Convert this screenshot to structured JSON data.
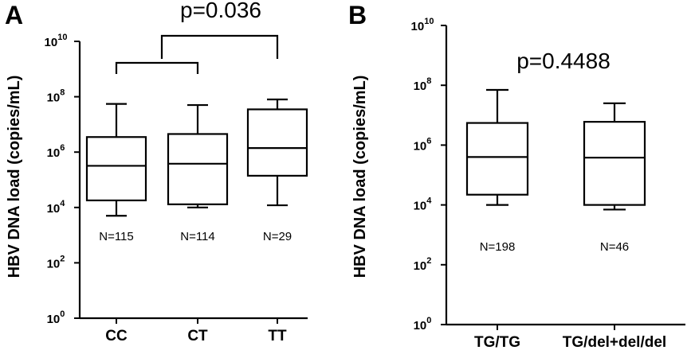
{
  "chart_data": [
    {
      "type": "box",
      "panel_label": "A",
      "ylabel": "HBV DNA load (copies/mL)",
      "y_scale": "log10",
      "ylim": [
        1,
        10000000000
      ],
      "y_ticks": [
        {
          "base": "10",
          "exp": "0"
        },
        {
          "base": "10",
          "exp": "2"
        },
        {
          "base": "10",
          "exp": "4"
        },
        {
          "base": "10",
          "exp": "6"
        },
        {
          "base": "10",
          "exp": "8"
        },
        {
          "base": "10",
          "exp": "10"
        }
      ],
      "categories": [
        "CC",
        "CT",
        "TT"
      ],
      "n_labels": [
        "N=115",
        "N=114",
        "N=29"
      ],
      "boxes": [
        {
          "min": 5000,
          "q1": 18000,
          "median": 320000,
          "q3": 3500000,
          "max": 55000000
        },
        {
          "min": 10000,
          "q1": 13000,
          "median": 380000,
          "q3": 4500000,
          "max": 50000000
        },
        {
          "min": 12000,
          "q1": 140000,
          "median": 1400000,
          "q3": 35000000,
          "max": 80000000
        }
      ],
      "annotation": {
        "text": "p=0.036",
        "brackets": [
          [
            "CC",
            "CT"
          ],
          [
            "CC+CT",
            "TT"
          ]
        ]
      }
    },
    {
      "type": "box",
      "panel_label": "B",
      "ylabel": "HBV DNA load (copies/mL)",
      "y_scale": "log10",
      "ylim": [
        1,
        10000000000
      ],
      "y_ticks": [
        {
          "base": "10",
          "exp": "0"
        },
        {
          "base": "10",
          "exp": "2"
        },
        {
          "base": "10",
          "exp": "4"
        },
        {
          "base": "10",
          "exp": "6"
        },
        {
          "base": "10",
          "exp": "8"
        },
        {
          "base": "10",
          "exp": "10"
        }
      ],
      "categories": [
        "TG/TG",
        "TG/del+del/del"
      ],
      "n_labels": [
        "N=198",
        "N=46"
      ],
      "boxes": [
        {
          "min": 10000,
          "q1": 22000,
          "median": 400000,
          "q3": 5500000,
          "max": 70000000
        },
        {
          "min": 7000,
          "q1": 10000,
          "median": 380000,
          "q3": 6000000,
          "max": 25000000
        }
      ],
      "annotation": {
        "text": "p=0.4488"
      }
    }
  ]
}
